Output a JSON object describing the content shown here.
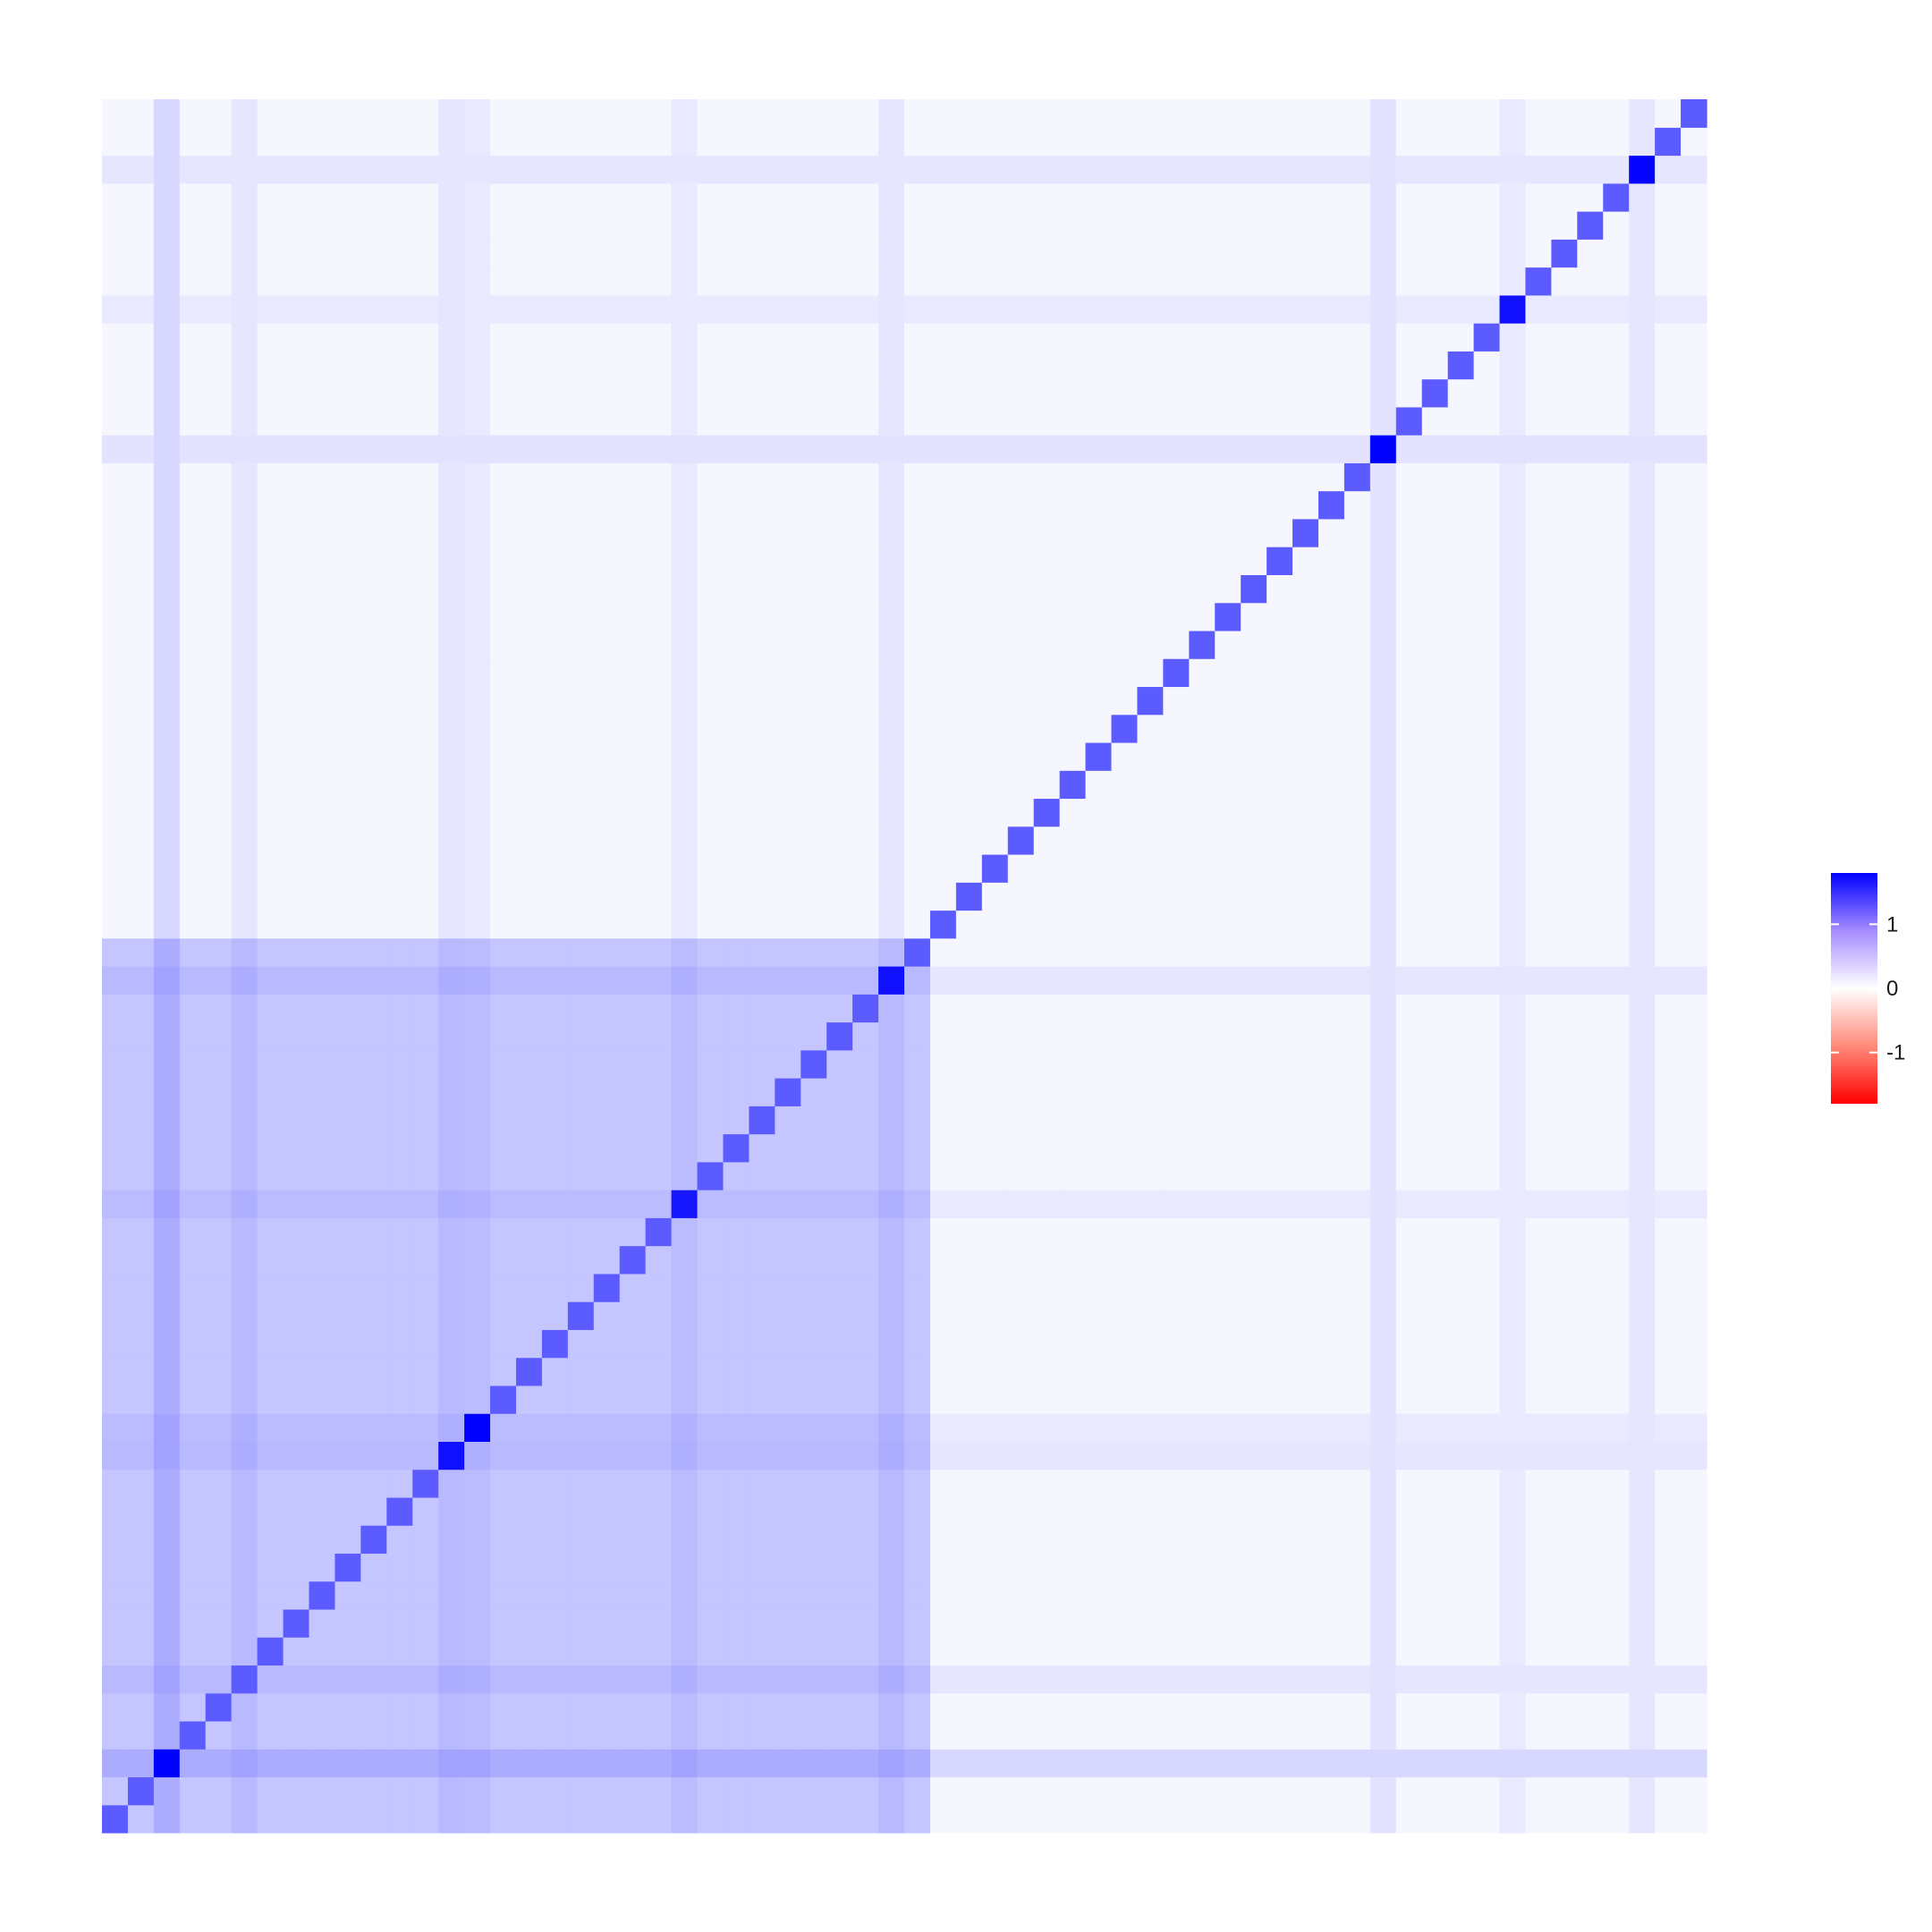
{
  "chart_data": {
    "type": "heatmap",
    "n": 62,
    "row_order": "bottom-to-top",
    "color_scale": {
      "low": "#ff0000",
      "mid": "#ffffff",
      "high": "#0000ff",
      "limits": [
        -1.8,
        1.8
      ]
    },
    "legend": {
      "placement": "right",
      "ticks": [
        1,
        0,
        -1
      ],
      "tick_labels": [
        "1",
        "0",
        "-1"
      ]
    },
    "diagonal_value": 1.0,
    "strong_diagonal": [
      {
        "index": 2,
        "value": 1.8
      },
      {
        "index": 13,
        "value": 1.65
      },
      {
        "index": 14,
        "value": 1.8
      },
      {
        "index": 22,
        "value": 1.6
      },
      {
        "index": 30,
        "value": 1.65
      },
      {
        "index": 49,
        "value": 1.8
      },
      {
        "index": 54,
        "value": 1.65
      },
      {
        "index": 59,
        "value": 1.75
      }
    ],
    "blocks": [
      {
        "rows": [
          0,
          31
        ],
        "cols": [
          0,
          31
        ],
        "value": 0.25
      }
    ],
    "background_value": 0.02,
    "highlight_columns": [
      {
        "index": 2,
        "value": 0.25
      },
      {
        "index": 5,
        "value": 0.12
      },
      {
        "index": 13,
        "value": 0.12
      },
      {
        "index": 14,
        "value": 0.1
      },
      {
        "index": 22,
        "value": 0.1
      },
      {
        "index": 30,
        "value": 0.12
      },
      {
        "index": 49,
        "value": 0.15
      },
      {
        "index": 54,
        "value": 0.1
      },
      {
        "index": 59,
        "value": 0.12
      }
    ]
  }
}
